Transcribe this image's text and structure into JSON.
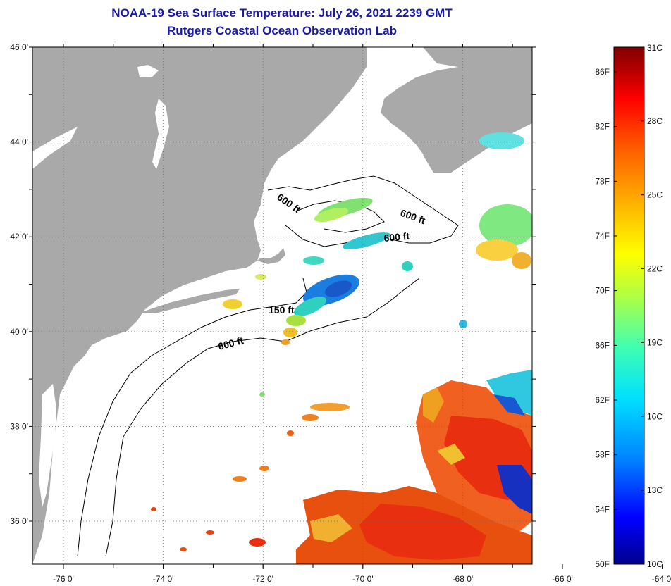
{
  "header": {
    "title": "NOAA-19 Sea Surface Temperature:  July 26, 2021 2239 GMT",
    "subtitle": "Rutgers Coastal Ocean Observation Lab"
  },
  "map": {
    "lon_labels": [
      "-76 0'",
      "-74 0'",
      "-72 0'",
      "-70 0'",
      "-68 0'",
      "-66 0'",
      "-64 0'"
    ],
    "lat_labels": [
      "46 0'",
      "44 0'",
      "42 0'",
      "40 0'",
      "38 0'",
      "36 0'"
    ],
    "lon_values": [
      -76,
      -74,
      -72,
      -70,
      -68,
      -66,
      -64
    ],
    "lat_values": [
      46,
      44,
      42,
      40,
      38,
      36
    ],
    "contour_labels": [
      "600 ft",
      "600 ft",
      "600 ft",
      "150 ft",
      "600 ft"
    ],
    "land_color": "#a9a9a9",
    "background_color": "#ffffff"
  },
  "colorbar": {
    "fahrenheit_labels": [
      "86F",
      "82F",
      "78F",
      "74F",
      "70F",
      "66F",
      "62F",
      "58F",
      "54F",
      "50F"
    ],
    "celsius_labels": [
      "31C",
      "28C",
      "25C",
      "22C",
      "19C",
      "16C",
      "13C",
      "10C"
    ],
    "colors": [
      "#00008c",
      "#0000ff",
      "#0080ff",
      "#00e0ff",
      "#40ffb0",
      "#b0ff40",
      "#ffff00",
      "#ffb000",
      "#ff6000",
      "#ff0000",
      "#b00000",
      "#800000"
    ]
  }
}
